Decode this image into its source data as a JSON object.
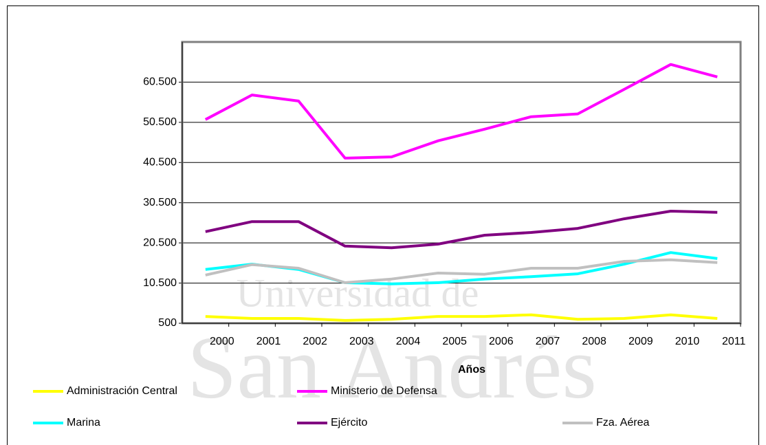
{
  "chart_data": {
    "type": "line",
    "xlabel": "Años",
    "watermark": [
      "Universidad de",
      "San Andrés"
    ],
    "categories": [
      "2000",
      "2001",
      "2002",
      "2003",
      "2004",
      "2005",
      "2006",
      "2007",
      "2008",
      "2009",
      "2010",
      "2011"
    ],
    "series": [
      {
        "name": "Administración Central",
        "color": "#ffff00",
        "values": [
          2200,
          1700,
          1700,
          1200,
          1500,
          2200,
          2200,
          2600,
          1500,
          1700,
          2600,
          1700
        ]
      },
      {
        "name": "Ministerio de Defensa",
        "color": "#ff00ff",
        "values": [
          51200,
          57300,
          55800,
          41600,
          41900,
          45900,
          48800,
          51900,
          52600,
          58700,
          64900,
          61800
        ]
      },
      {
        "name": "Marina",
        "color": "#00ffff",
        "values": [
          13900,
          15200,
          13900,
          10600,
          10300,
          10600,
          11500,
          12100,
          12800,
          15200,
          18100,
          16600
        ]
      },
      {
        "name": "Ejército",
        "color": "#800080",
        "values": [
          23300,
          25800,
          25800,
          19700,
          19300,
          20200,
          22400,
          23100,
          24100,
          26500,
          28400,
          28100
        ]
      },
      {
        "name": "Fza. Aérea",
        "color": "#c0c0c0",
        "values": [
          12500,
          15100,
          14200,
          10600,
          11500,
          13000,
          12700,
          14200,
          14200,
          15900,
          16300,
          15600
        ]
      }
    ],
    "ylim": [
      500,
      70500
    ],
    "yticks": [
      500,
      {
        "value": 10500,
        "label": "10.500"
      },
      {
        "value": 20500,
        "label": "20.500"
      },
      {
        "value": 30500,
        "label": "30.500"
      },
      {
        "value": 40500,
        "label": "40.500"
      },
      {
        "value": 50500,
        "label": "50.500"
      },
      {
        "value": 60500,
        "label": "60.500"
      }
    ],
    "grid": true
  }
}
